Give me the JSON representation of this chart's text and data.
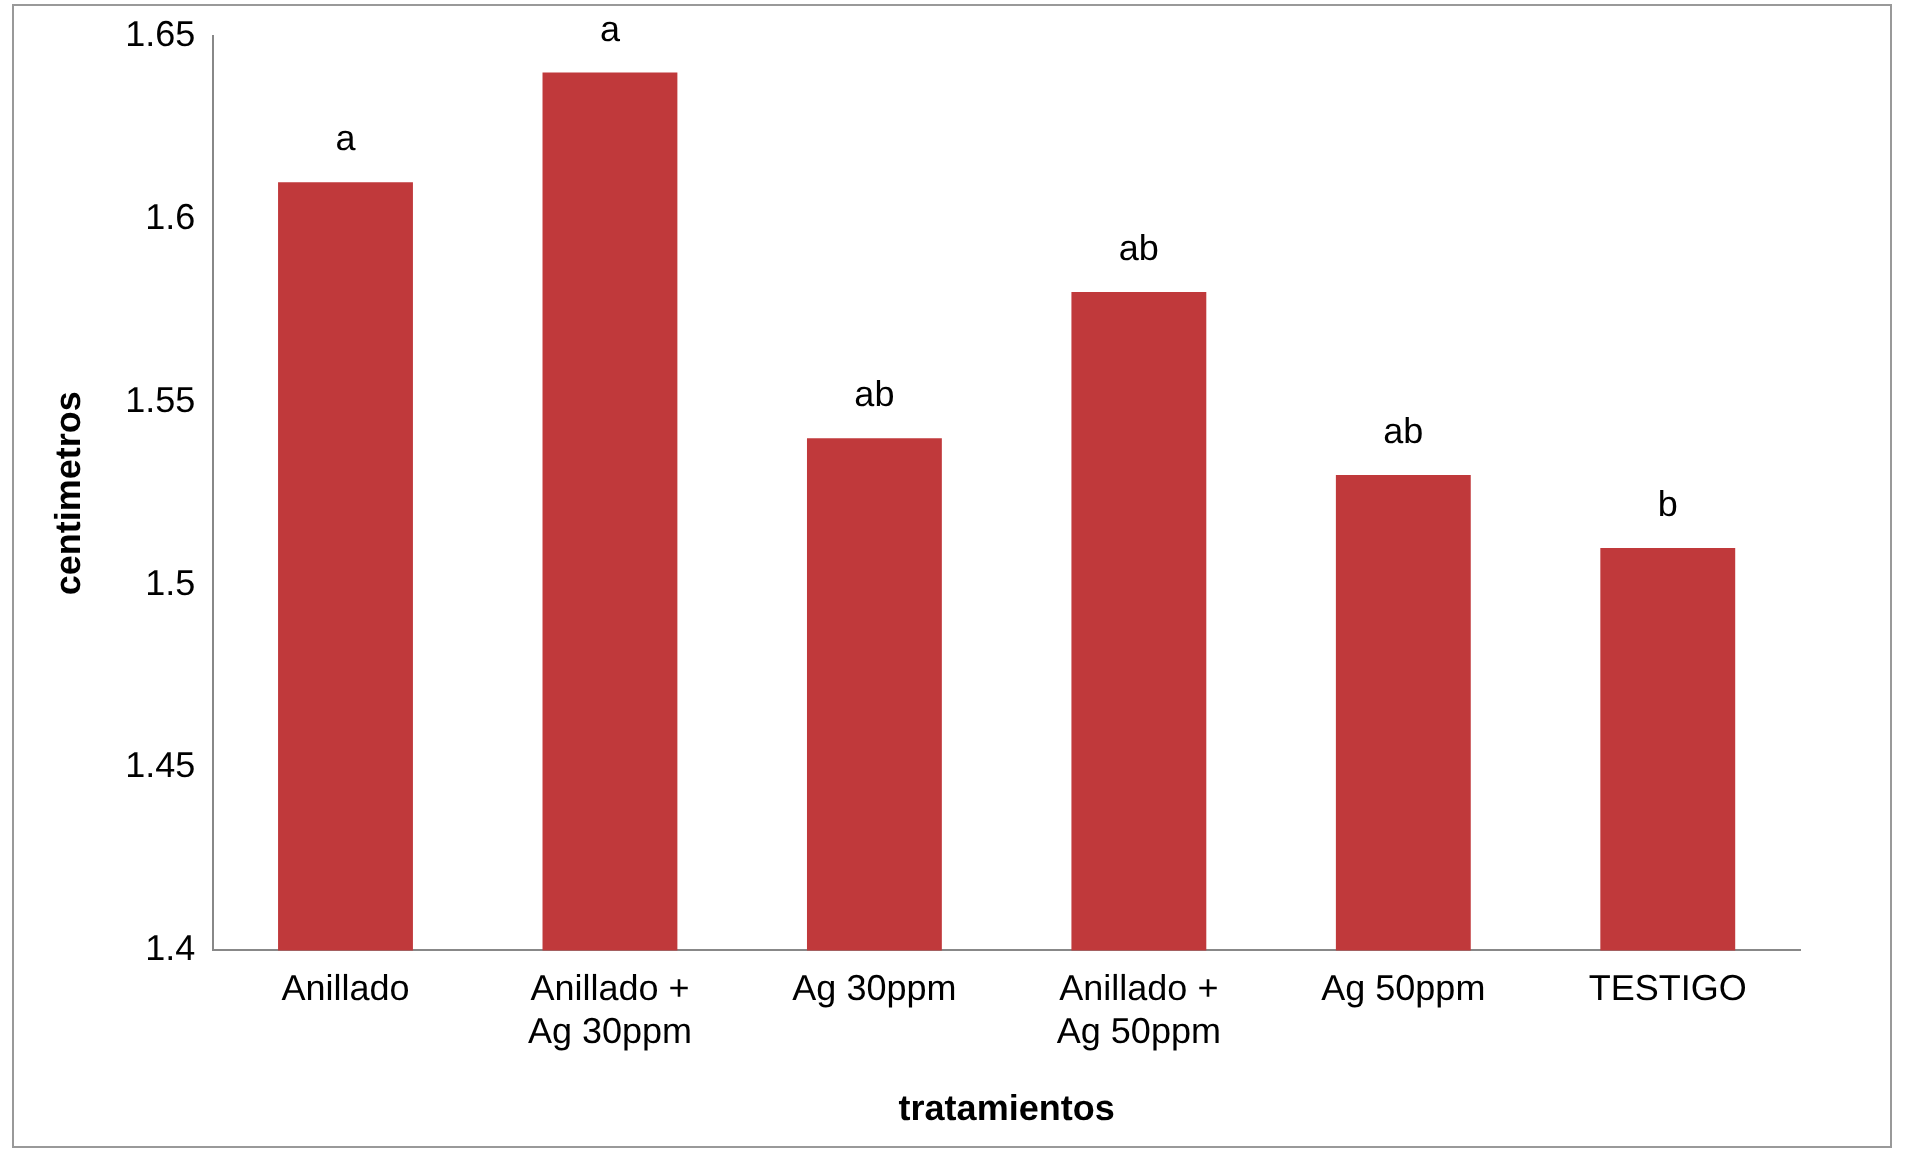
{
  "chart_data": {
    "type": "bar",
    "xlabel": "tratamientos",
    "ylabel": "centimetros",
    "categories": [
      "Anillado",
      "Anillado + Ag 30ppm",
      "Ag 30ppm",
      "Anillado + Ag 50ppm",
      "Ag 50ppm",
      "TESTIGO"
    ],
    "values": [
      1.61,
      1.64,
      1.54,
      1.58,
      1.53,
      1.51
    ],
    "value_labels": [
      "a",
      "a",
      "ab",
      "ab",
      "ab",
      "b"
    ],
    "color": "#c0393b",
    "ylim": [
      1.4,
      1.65
    ],
    "yticks": [
      1.4,
      1.45,
      1.5,
      1.55,
      1.6,
      1.65
    ],
    "grid": false,
    "legend": false
  }
}
